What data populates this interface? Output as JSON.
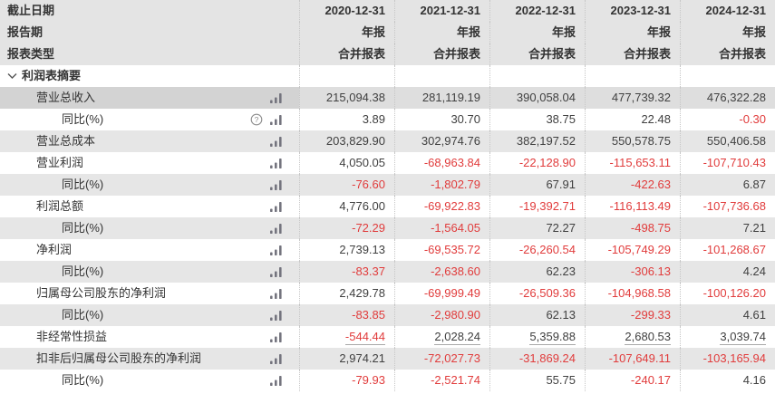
{
  "table": {
    "header_rows": [
      {
        "label": "截止日期",
        "values": [
          "2020-12-31",
          "2021-12-31",
          "2022-12-31",
          "2023-12-31",
          "2024-12-31"
        ]
      },
      {
        "label": "报告期",
        "values": [
          "年报",
          "年报",
          "年报",
          "年报",
          "年报"
        ]
      },
      {
        "label": "报表类型",
        "values": [
          "合并报表",
          "合并报表",
          "合并报表",
          "合并报表",
          "合并报表"
        ]
      }
    ],
    "section": {
      "label": "利润表摘要",
      "expanded": true
    },
    "rows": [
      {
        "label": "营业总收入",
        "indent": 1,
        "highlight": true,
        "values": [
          "215,094.38",
          "281,119.19",
          "390,058.04",
          "477,739.32",
          "476,322.28"
        ]
      },
      {
        "label": "同比(%)",
        "indent": 2,
        "help": true,
        "values": [
          "3.89",
          "30.70",
          "38.75",
          "22.48",
          "-0.30"
        ]
      },
      {
        "label": "营业总成本",
        "indent": 1,
        "values": [
          "203,829.90",
          "302,974.76",
          "382,197.52",
          "550,578.75",
          "550,406.58"
        ]
      },
      {
        "label": "营业利润",
        "indent": 1,
        "values": [
          "4,050.05",
          "-68,963.84",
          "-22,128.90",
          "-115,653.11",
          "-107,710.43"
        ]
      },
      {
        "label": "同比(%)",
        "indent": 2,
        "values": [
          "-76.60",
          "-1,802.79",
          "67.91",
          "-422.63",
          "6.87"
        ]
      },
      {
        "label": "利润总额",
        "indent": 1,
        "values": [
          "4,776.00",
          "-69,922.83",
          "-19,392.71",
          "-116,113.49",
          "-107,736.68"
        ]
      },
      {
        "label": "同比(%)",
        "indent": 2,
        "values": [
          "-72.29",
          "-1,564.05",
          "72.27",
          "-498.75",
          "7.21"
        ]
      },
      {
        "label": "净利润",
        "indent": 1,
        "values": [
          "2,739.13",
          "-69,535.72",
          "-26,260.54",
          "-105,749.29",
          "-101,268.67"
        ]
      },
      {
        "label": "同比(%)",
        "indent": 2,
        "values": [
          "-83.37",
          "-2,638.60",
          "62.23",
          "-306.13",
          "4.24"
        ]
      },
      {
        "label": "归属母公司股东的净利润",
        "indent": 1,
        "values": [
          "2,429.78",
          "-69,999.49",
          "-26,509.36",
          "-104,968.58",
          "-100,126.20"
        ]
      },
      {
        "label": "同比(%)",
        "indent": 2,
        "values": [
          "-83.85",
          "-2,980.90",
          "62.13",
          "-299.33",
          "4.61"
        ]
      },
      {
        "label": "非经常性损益",
        "indent": 1,
        "underline": true,
        "values": [
          "-544.44",
          "2,028.24",
          "5,359.88",
          "2,680.53",
          "3,039.74"
        ]
      },
      {
        "label": "扣非后归属母公司股东的净利润",
        "indent": 1,
        "values": [
          "2,974.21",
          "-72,027.73",
          "-31,869.24",
          "-107,649.11",
          "-103,165.94"
        ]
      },
      {
        "label": "同比(%)",
        "indent": 2,
        "values": [
          "-79.93",
          "-2,521.74",
          "55.75",
          "-240.17",
          "4.16"
        ]
      }
    ]
  },
  "icons": {
    "chart": "bar-chart-icon",
    "help": "question-mark-circle-icon",
    "expand": "chevron-down-icon"
  },
  "colors": {
    "negative": "#e13c3c",
    "header_gray": "#e4e4e4",
    "row_gray": "#e6e6e6",
    "highlight_label": "#d3d3d3",
    "highlight_value": "#dedede",
    "icon_gray": "#74747e",
    "text": "#333333"
  }
}
